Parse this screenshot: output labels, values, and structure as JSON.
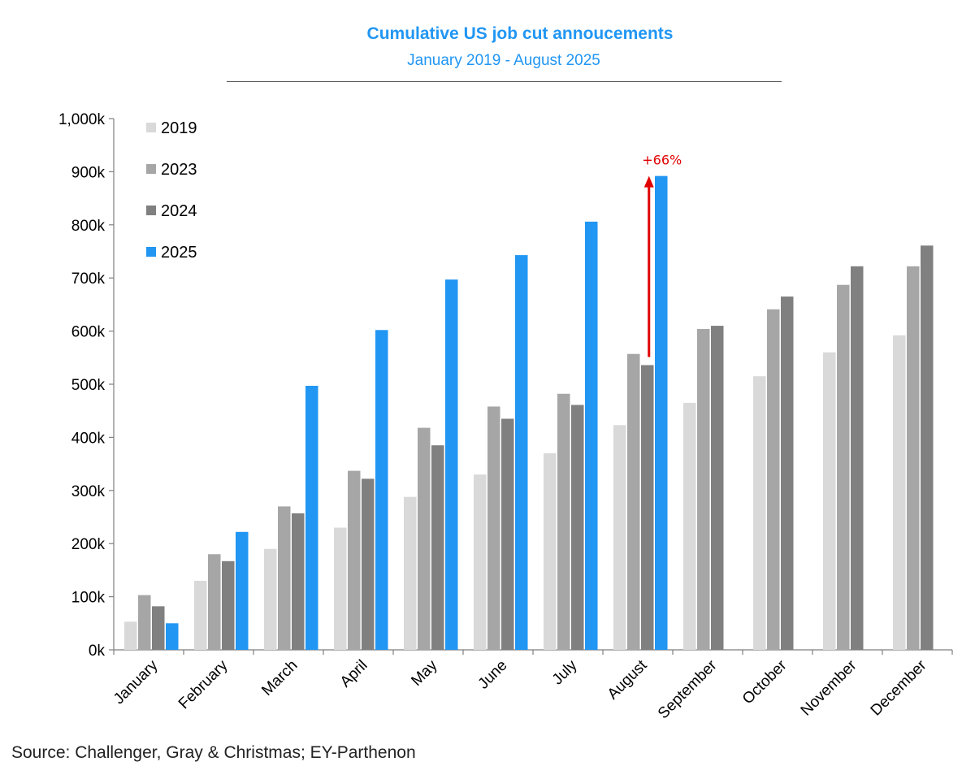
{
  "chart_data": {
    "type": "bar",
    "title": "Cumulative US job cut annoucements",
    "subtitle": "January 2019 - August 2025",
    "source": "Source: Challenger, Gray & Christmas; EY-Parthenon",
    "categories": [
      "January",
      "February",
      "March",
      "April",
      "May",
      "June",
      "July",
      "August",
      "September",
      "October",
      "November",
      "December"
    ],
    "ylim": [
      0,
      1000
    ],
    "yticks": [
      0,
      100,
      200,
      300,
      400,
      500,
      600,
      700,
      800,
      900,
      1000
    ],
    "ytick_labels": [
      "0k",
      "100k",
      "200k",
      "300k",
      "400k",
      "500k",
      "600k",
      "700k",
      "800k",
      "900k",
      "1,000k"
    ],
    "grid": false,
    "legend_position": "top-left",
    "series": [
      {
        "name": "2019",
        "color": "#d9d9d9",
        "values": [
          53,
          130,
          190,
          230,
          288,
          330,
          370,
          423,
          465,
          515,
          560,
          592
        ]
      },
      {
        "name": "2023",
        "color": "#a6a6a6",
        "values": [
          103,
          180,
          270,
          337,
          418,
          458,
          482,
          557,
          604,
          641,
          687,
          722
        ]
      },
      {
        "name": "2024",
        "color": "#808080",
        "values": [
          82,
          167,
          257,
          322,
          385,
          435,
          461,
          536,
          610,
          665,
          722,
          761
        ]
      },
      {
        "name": "2025",
        "color": "#2196f3",
        "values": [
          50,
          222,
          497,
          602,
          697,
          743,
          806,
          892,
          null,
          null,
          null,
          null
        ]
      }
    ],
    "annotation": {
      "text": "+66%",
      "color": "#e00000",
      "category": "August",
      "from": 536,
      "to": 892
    }
  },
  "colors": {
    "title": "#2196f3",
    "axis": "#7f7f7f"
  }
}
